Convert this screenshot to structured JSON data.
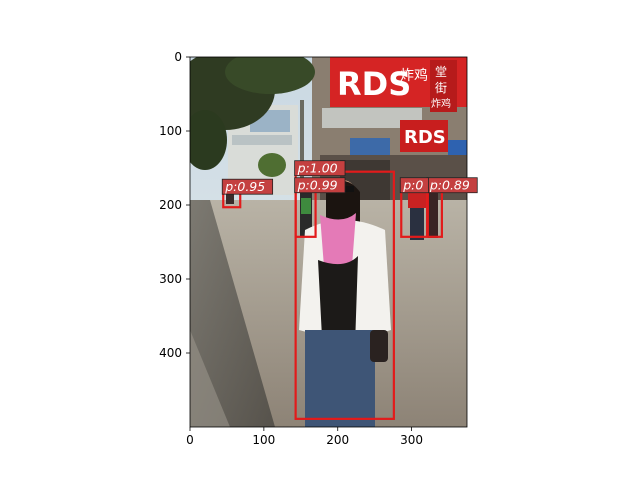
{
  "chart_data": {
    "type": "image-detections",
    "xlim": [
      0,
      375
    ],
    "ylim": [
      500,
      0
    ],
    "xticks": [
      0,
      100,
      200,
      300
    ],
    "yticks": [
      0,
      100,
      200,
      300,
      400
    ],
    "detections": [
      {
        "label": "p:1.00",
        "x0": 143,
        "y0": 155,
        "x1": 276,
        "y1": 489
      },
      {
        "label": "p:0.99",
        "x0": 143,
        "y0": 178,
        "x1": 170,
        "y1": 243
      },
      {
        "label": "p:0.95",
        "x0": 45,
        "y0": 180,
        "x1": 68,
        "y1": 203
      },
      {
        "label": "p:0.89",
        "x0": 322,
        "y0": 178,
        "x1": 341,
        "y1": 243
      },
      {
        "label": "p:0",
        "x0": 286,
        "y0": 178,
        "x1": 321,
        "y1": 243
      }
    ],
    "box_color": "#e21b1b",
    "label_bg": "#c44040"
  },
  "photo": {
    "sign_main": "RDS",
    "sign_store": "RDS",
    "sign_chinese_1": "炸鸡",
    "sign_chinese_2": "堂",
    "sign_chinese_3": "街",
    "sign_chinese_4": "炸鸡"
  }
}
